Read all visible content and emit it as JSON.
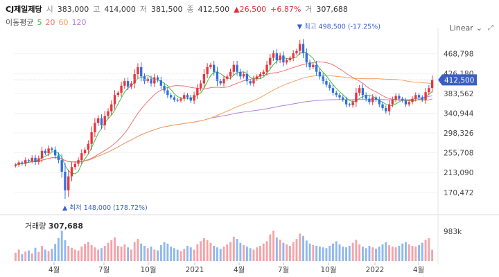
{
  "header": {
    "name": "CJ제일제당",
    "open_label": "시",
    "open": "383,000",
    "high_label": "고",
    "high": "414,000",
    "low_label": "저",
    "low": "381,500",
    "close_label": "종",
    "close": "412,500",
    "change": "▲26,500",
    "change_pct": "+6.87%",
    "volume_label": "거",
    "volume": "307,688"
  },
  "ma_legend": {
    "label": "이동평균",
    "items": [
      "5",
      "20",
      "60",
      "120"
    ]
  },
  "scale": {
    "label": "Linear",
    "icon": "chevron-down-icon"
  },
  "colors": {
    "up": "#e8343c",
    "down": "#2f6fe0",
    "ma5": "#3fbf3f",
    "ma20": "#f07070",
    "ma60": "#f5a05a",
    "ma120": "#b080e0",
    "current": "#3b5fbf",
    "vol_up": "#f4a3a8",
    "vol_down": "#8fb8ee"
  },
  "chart_data": {
    "type": "candlestick",
    "y_ticks": [
      "468,798",
      "426,180",
      "383,562",
      "340,944",
      "298,326",
      "255,708",
      "213,090",
      "170,472"
    ],
    "ylim": [
      130000,
      510000
    ],
    "x_ticks": [
      "4월",
      "7월",
      "10월",
      "2021",
      "4월",
      "7월",
      "10월",
      "2022",
      "4월"
    ],
    "current_price": "412,500",
    "high_annotation": "최고 498,500 (-17.25%)",
    "low_annotation": "최저 148,000 (178.72%)",
    "volume_title": "거래량",
    "volume_value": "307,688",
    "volume_tick": "983k",
    "closes": [
      230000,
      235000,
      232000,
      240000,
      238000,
      245000,
      236000,
      244000,
      260000,
      255000,
      265000,
      262000,
      250000,
      240000,
      215000,
      175000,
      205000,
      225000,
      232000,
      240000,
      255000,
      262000,
      275000,
      300000,
      320000,
      330000,
      315000,
      335000,
      345000,
      360000,
      380000,
      385000,
      400000,
      410000,
      398000,
      405000,
      425000,
      440000,
      420000,
      410000,
      415000,
      405000,
      418000,
      412000,
      400000,
      390000,
      380000,
      375000,
      370000,
      368000,
      372000,
      380000,
      375000,
      368000,
      380000,
      395000,
      405000,
      425000,
      440000,
      445000,
      430000,
      410000,
      405000,
      415000,
      420000,
      430000,
      445000,
      430000,
      420000,
      425000,
      410000,
      405000,
      415000,
      420000,
      425000,
      430000,
      445000,
      460000,
      470000,
      455000,
      465000,
      450000,
      455000,
      460000,
      470000,
      475000,
      490000,
      470000,
      450000,
      440000,
      445000,
      430000,
      420000,
      410000,
      402000,
      395000,
      385000,
      380000,
      375000,
      370000,
      360000,
      358000,
      365000,
      385000,
      395000,
      380000,
      372000,
      365000,
      375000,
      370000,
      360000,
      352000,
      345000,
      360000,
      370000,
      378000,
      372000,
      368000,
      360000,
      365000,
      372000,
      380000,
      375000,
      370000,
      386000,
      395000,
      412500
    ],
    "volumes": [
      22,
      30,
      18,
      25,
      28,
      20,
      35,
      24,
      40,
      30,
      26,
      32,
      45,
      60,
      80,
      55,
      40,
      35,
      30,
      28,
      38,
      45,
      50,
      42,
      36,
      30,
      34,
      40,
      48,
      55,
      62,
      40,
      38,
      44,
      36,
      30,
      50,
      58,
      46,
      40,
      34,
      38,
      30,
      28,
      42,
      50,
      46,
      38,
      34,
      30,
      26,
      32,
      40,
      36,
      30,
      44,
      52,
      60,
      55,
      48,
      40,
      36,
      32,
      38,
      44,
      50,
      64,
      58,
      48,
      42,
      38,
      34,
      30,
      36,
      40,
      46,
      52,
      70,
      80,
      62,
      56,
      48,
      44,
      40,
      50,
      58,
      72,
      66,
      54,
      46,
      42,
      40,
      38,
      36,
      34,
      40,
      46,
      52,
      44,
      38,
      36,
      40,
      48,
      56,
      44,
      38,
      34,
      40,
      36,
      32,
      38,
      44,
      50,
      42,
      38,
      36,
      40,
      46,
      50,
      44,
      40,
      38,
      42,
      48,
      56,
      60,
      30
    ]
  }
}
